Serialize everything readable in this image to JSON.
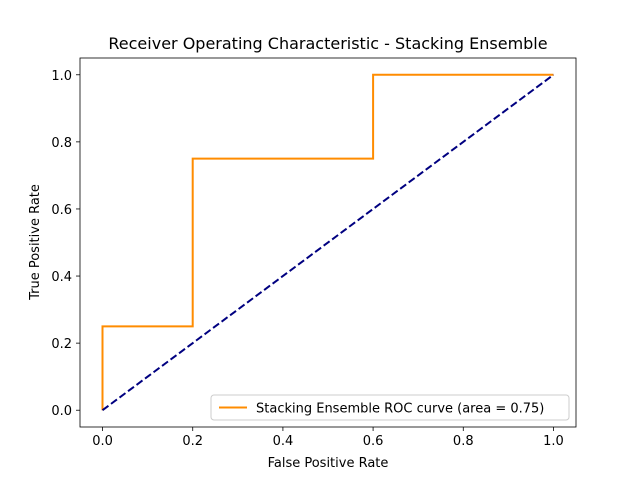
{
  "chart_data": {
    "type": "line",
    "title": "Receiver Operating Characteristic - Stacking Ensemble",
    "xlabel": "False Positive Rate",
    "ylabel": "True Positive Rate",
    "xlim": [
      -0.05,
      1.05
    ],
    "ylim": [
      -0.05,
      1.05
    ],
    "xticks": [
      "0.0",
      "0.2",
      "0.4",
      "0.6",
      "0.8",
      "1.0"
    ],
    "yticks": [
      "0.0",
      "0.2",
      "0.4",
      "0.6",
      "0.8",
      "1.0"
    ],
    "grid": false,
    "legend_position": "lower-right",
    "series": [
      {
        "name": "Stacking Ensemble ROC curve (area = 0.75)",
        "color": "#ff8c00",
        "style": "solid",
        "x": [
          0.0,
          0.0,
          0.2,
          0.2,
          0.6,
          0.6,
          1.0
        ],
        "y": [
          0.0,
          0.25,
          0.25,
          0.75,
          0.75,
          1.0,
          1.0
        ]
      },
      {
        "color": "#000080",
        "style": "dashed",
        "x": [
          0.0,
          1.0
        ],
        "y": [
          0.0,
          1.0
        ]
      }
    ]
  }
}
